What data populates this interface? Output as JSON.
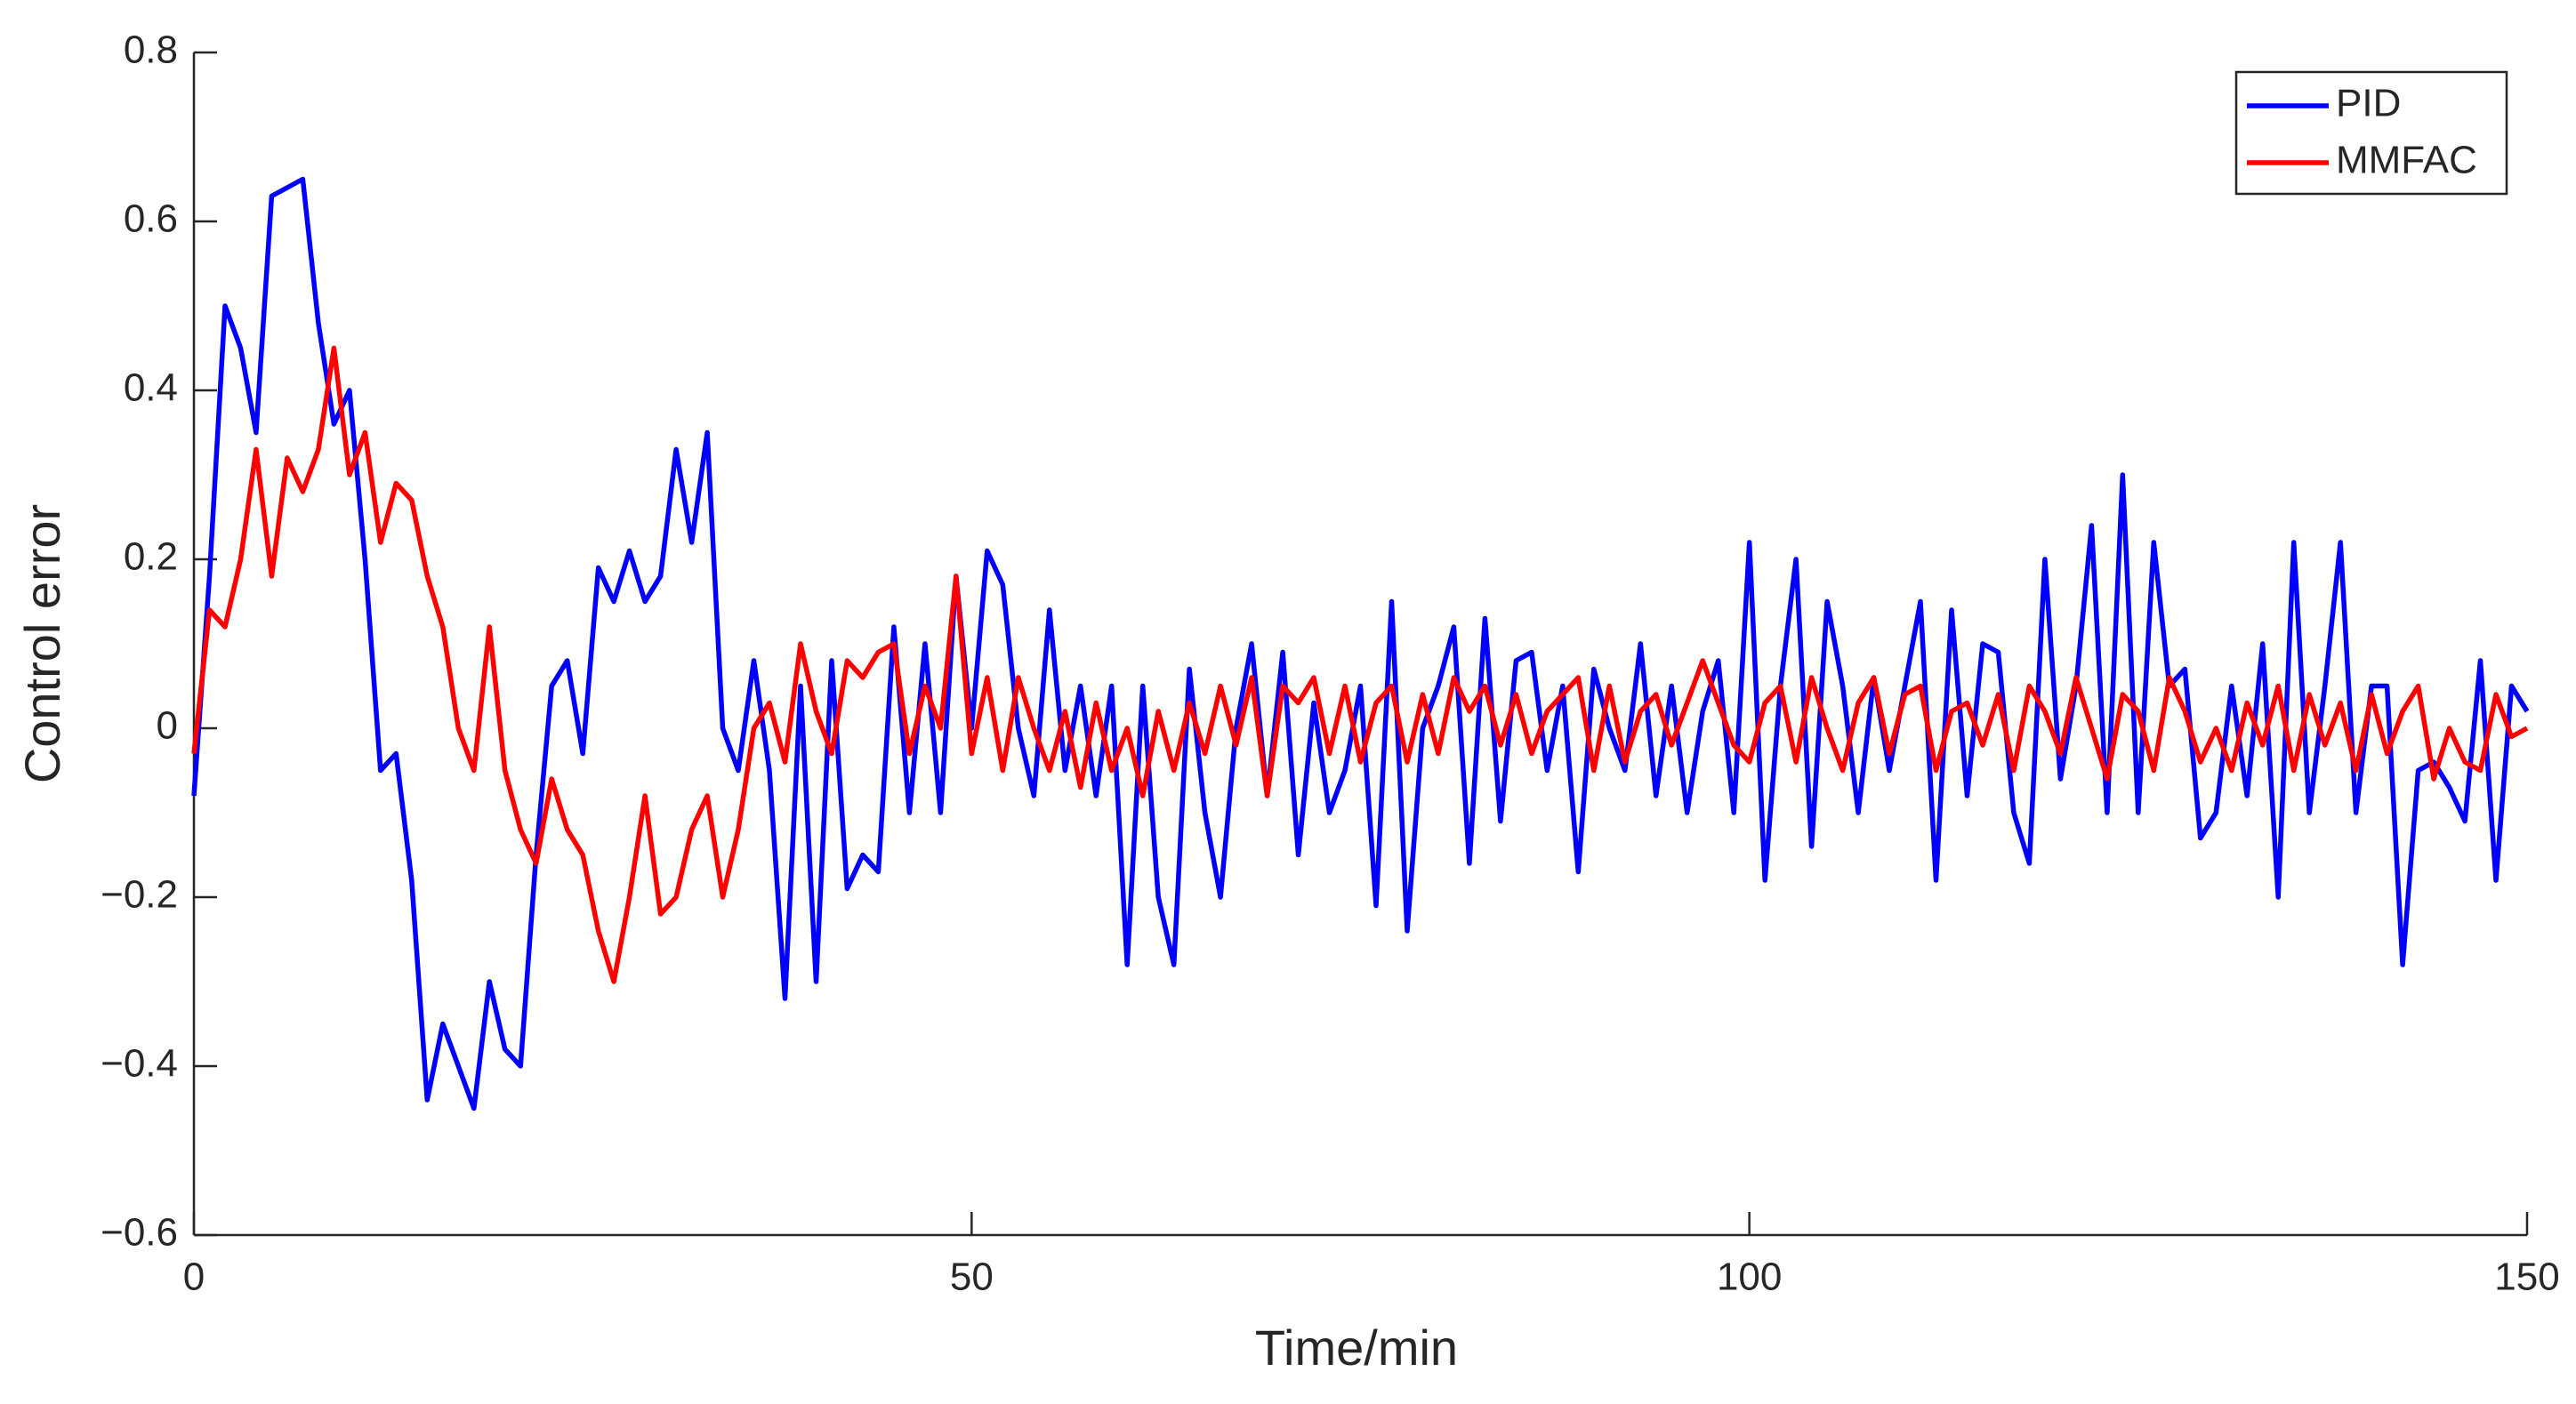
{
  "chart_data": {
    "type": "line",
    "xlabel": "Time/min",
    "ylabel": "Control error",
    "x": [
      0,
      1,
      2,
      3,
      4,
      5,
      6,
      7,
      8,
      9,
      10,
      11,
      12,
      13,
      14,
      15,
      16,
      17,
      18,
      19,
      20,
      21,
      22,
      23,
      24,
      25,
      26,
      27,
      28,
      29,
      30,
      31,
      32,
      33,
      34,
      35,
      36,
      37,
      38,
      39,
      40,
      41,
      42,
      43,
      44,
      45,
      46,
      47,
      48,
      49,
      50,
      51,
      52,
      53,
      54,
      55,
      56,
      57,
      58,
      59,
      60,
      61,
      62,
      63,
      64,
      65,
      66,
      67,
      68,
      69,
      70,
      71,
      72,
      73,
      74,
      75,
      76,
      77,
      78,
      79,
      80,
      81,
      82,
      83,
      84,
      85,
      86,
      87,
      88,
      89,
      90,
      91,
      92,
      93,
      94,
      95,
      96,
      97,
      98,
      99,
      100,
      101,
      102,
      103,
      104,
      105,
      106,
      107,
      108,
      109,
      110,
      111,
      112,
      113,
      114,
      115,
      116,
      117,
      118,
      119,
      120,
      121,
      122,
      123,
      124,
      125,
      126,
      127,
      128,
      129,
      130,
      131,
      132,
      133,
      134,
      135,
      136,
      137,
      138,
      139,
      140,
      141,
      142,
      143,
      144,
      145,
      146,
      147,
      148,
      149,
      150
    ],
    "series": [
      {
        "name": "PID",
        "color": "#0000ff",
        "values": [
          -0.08,
          0.18,
          0.5,
          0.45,
          0.35,
          0.63,
          0.64,
          0.65,
          0.48,
          0.36,
          0.4,
          0.2,
          -0.05,
          -0.03,
          -0.18,
          -0.44,
          -0.35,
          -0.4,
          -0.45,
          -0.3,
          -0.38,
          -0.4,
          -0.15,
          0.05,
          0.08,
          -0.03,
          0.19,
          0.15,
          0.21,
          0.15,
          0.18,
          0.33,
          0.22,
          0.35,
          0.0,
          -0.05,
          0.08,
          -0.05,
          -0.32,
          0.05,
          -0.3,
          0.08,
          -0.19,
          -0.15,
          -0.17,
          0.12,
          -0.1,
          0.1,
          -0.1,
          0.18,
          0.0,
          0.21,
          0.17,
          0.0,
          -0.08,
          0.14,
          -0.05,
          0.05,
          -0.08,
          0.05,
          -0.28,
          0.05,
          -0.2,
          -0.28,
          0.07,
          -0.1,
          -0.2,
          0.0,
          0.1,
          -0.08,
          0.09,
          -0.15,
          0.03,
          -0.1,
          -0.05,
          0.05,
          -0.21,
          0.15,
          -0.24,
          0.0,
          0.05,
          0.12,
          -0.16,
          0.13,
          -0.11,
          0.08,
          0.09,
          -0.05,
          0.05,
          -0.17,
          0.07,
          0.0,
          -0.05,
          0.1,
          -0.08,
          0.05,
          -0.1,
          0.02,
          0.08,
          -0.1,
          0.22,
          -0.18,
          0.05,
          0.2,
          -0.14,
          0.15,
          0.05,
          -0.1,
          0.06,
          -0.05,
          0.05,
          0.15,
          -0.18,
          0.14,
          -0.08,
          0.1,
          0.09,
          -0.1,
          -0.16,
          0.2,
          -0.06,
          0.05,
          0.24,
          -0.1,
          0.3,
          -0.1,
          0.22,
          0.05,
          0.07,
          -0.13,
          -0.1,
          0.05,
          -0.08,
          0.1,
          -0.2,
          0.22,
          -0.1,
          0.05,
          0.22,
          -0.1,
          0.05,
          0.05,
          -0.28,
          -0.05,
          -0.04,
          -0.07,
          -0.11,
          0.08,
          -0.18,
          0.05,
          0.02
        ]
      },
      {
        "name": "MMFAC",
        "color": "#ff0000",
        "values": [
          -0.03,
          0.14,
          0.12,
          0.2,
          0.33,
          0.18,
          0.32,
          0.28,
          0.33,
          0.45,
          0.3,
          0.35,
          0.22,
          0.29,
          0.27,
          0.18,
          0.12,
          0.0,
          -0.05,
          0.12,
          -0.05,
          -0.12,
          -0.16,
          -0.06,
          -0.12,
          -0.15,
          -0.24,
          -0.3,
          -0.2,
          -0.08,
          -0.22,
          -0.2,
          -0.12,
          -0.08,
          -0.2,
          -0.12,
          0.0,
          0.03,
          -0.04,
          0.1,
          0.02,
          -0.03,
          0.08,
          0.06,
          0.09,
          0.1,
          -0.03,
          0.05,
          0.0,
          0.18,
          -0.03,
          0.06,
          -0.05,
          0.06,
          0.0,
          -0.05,
          0.02,
          -0.07,
          0.03,
          -0.05,
          0.0,
          -0.08,
          0.02,
          -0.05,
          0.03,
          -0.03,
          0.05,
          -0.02,
          0.06,
          -0.08,
          0.05,
          0.03,
          0.06,
          -0.03,
          0.05,
          -0.04,
          0.03,
          0.05,
          -0.04,
          0.04,
          -0.03,
          0.06,
          0.02,
          0.05,
          -0.02,
          0.04,
          -0.03,
          0.02,
          0.04,
          0.06,
          -0.05,
          0.05,
          -0.04,
          0.02,
          0.04,
          -0.02,
          0.03,
          0.08,
          0.03,
          -0.02,
          -0.04,
          0.03,
          0.05,
          -0.04,
          0.06,
          0.0,
          -0.05,
          0.03,
          0.06,
          -0.03,
          0.04,
          0.05,
          -0.05,
          0.02,
          0.03,
          -0.02,
          0.04,
          -0.05,
          0.05,
          0.02,
          -0.03,
          0.06,
          0.0,
          -0.06,
          0.04,
          0.02,
          -0.05,
          0.06,
          0.02,
          -0.04,
          0.0,
          -0.05,
          0.03,
          -0.02,
          0.05,
          -0.05,
          0.04,
          -0.02,
          0.03,
          -0.05,
          0.04,
          -0.03,
          0.02,
          0.05,
          -0.06,
          0.0,
          -0.04,
          -0.05,
          0.04,
          -0.01,
          0.0
        ]
      }
    ],
    "xlim": [
      0,
      150
    ],
    "xticks": [
      0,
      50,
      100,
      150
    ],
    "ylim": [
      -0.6,
      0.8
    ],
    "yticks": [
      {
        "value": -0.6,
        "label": "−0.6"
      },
      {
        "value": -0.4,
        "label": "−0.4"
      },
      {
        "value": -0.2,
        "label": "−0.2"
      },
      0,
      0.2,
      0.4,
      0.6,
      0.8
    ],
    "legend": "upper right",
    "grid": false
  }
}
